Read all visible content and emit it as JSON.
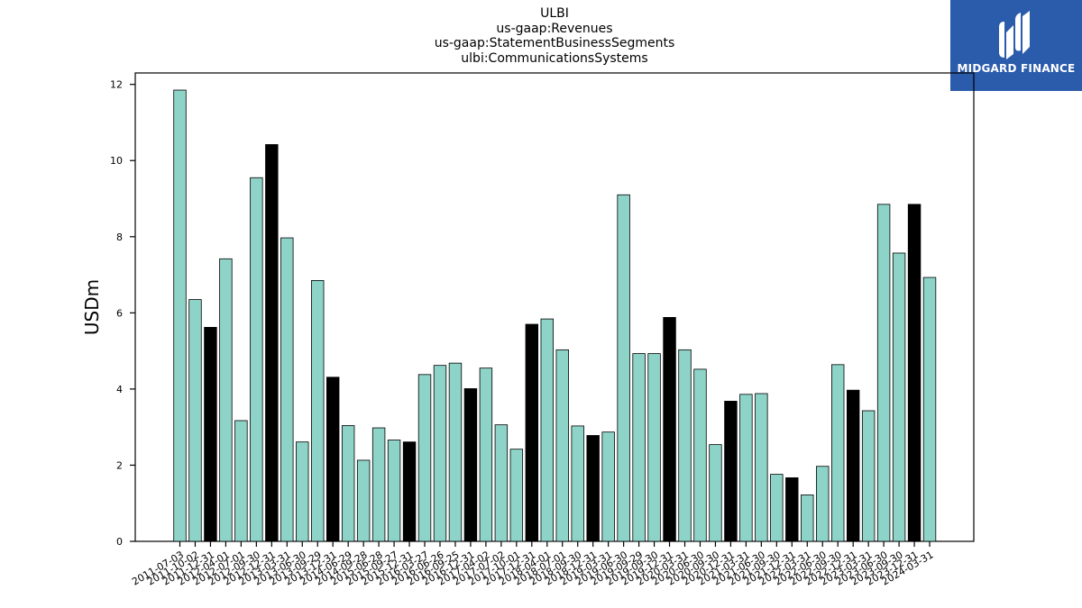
{
  "brand": {
    "name": "MIDGARD FINANCE",
    "bg_color": "#2b5bab",
    "icon": "midgard-logo-icon"
  },
  "chart_data": {
    "type": "bar",
    "title_lines": [
      "ULBI",
      "us-gaap:Revenues",
      "us-gaap:StatementBusinessSegments",
      "ulbi:CommunicationsSystems"
    ],
    "ylabel": "USDm",
    "xlabel": "",
    "ylim": [
      0,
      12.3
    ],
    "yticks": [
      0,
      2,
      4,
      6,
      8,
      10,
      12
    ],
    "colors": {
      "quarter": "#8ed3c7",
      "annual": "#000000",
      "edge": "#000000"
    },
    "categories": [
      "2011-07-03",
      "2011-10-02",
      "2011-12-31",
      "2012-04-01",
      "2012-07-01",
      "2012-09-30",
      "2012-12-31",
      "2013-03-31",
      "2013-06-30",
      "2013-09-29",
      "2013-12-31",
      "2014-06-29",
      "2014-09-28",
      "2015-06-28",
      "2015-09-27",
      "2015-12-31",
      "2016-03-27",
      "2016-06-26",
      "2016-09-25",
      "2016-12-31",
      "2017-04-02",
      "2017-07-02",
      "2017-10-01",
      "2017-12-31",
      "2018-04-01",
      "2018-07-01",
      "2018-09-30",
      "2018-12-31",
      "2019-03-31",
      "2019-06-30",
      "2019-09-29",
      "2019-09-30",
      "2019-12-31",
      "2020-03-31",
      "2020-06-30",
      "2020-09-30",
      "2020-12-31",
      "2021-03-31",
      "2021-06-30",
      "2021-09-30",
      "2021-12-31",
      "2022-03-31",
      "2022-06-30",
      "2022-09-30",
      "2022-12-31",
      "2023-03-31",
      "2023-06-30",
      "2023-09-30",
      "2023-12-31",
      "2024-03-31"
    ],
    "values": [
      11.85,
      6.35,
      5.62,
      7.42,
      3.17,
      9.55,
      10.42,
      7.97,
      2.61,
      6.85,
      4.31,
      3.04,
      2.13,
      2.98,
      2.66,
      2.61,
      4.38,
      4.62,
      4.68,
      4.01,
      4.55,
      3.06,
      2.42,
      5.7,
      5.84,
      5.03,
      3.03,
      2.78,
      2.87,
      9.1,
      4.93,
      4.93,
      5.88,
      5.03,
      4.52,
      2.54,
      3.68,
      3.86,
      3.88,
      1.76,
      1.67,
      1.22,
      1.97,
      4.64,
      3.97,
      3.43,
      8.85,
      7.57,
      8.85,
      6.93
    ],
    "annual": [
      false,
      false,
      true,
      false,
      false,
      false,
      true,
      false,
      false,
      false,
      true,
      false,
      false,
      false,
      false,
      true,
      false,
      false,
      false,
      true,
      false,
      false,
      false,
      true,
      false,
      false,
      false,
      true,
      false,
      false,
      false,
      false,
      true,
      false,
      false,
      false,
      true,
      false,
      false,
      false,
      true,
      false,
      false,
      false,
      true,
      false,
      false,
      false,
      true,
      false
    ],
    "grid": false,
    "legend": "none"
  }
}
